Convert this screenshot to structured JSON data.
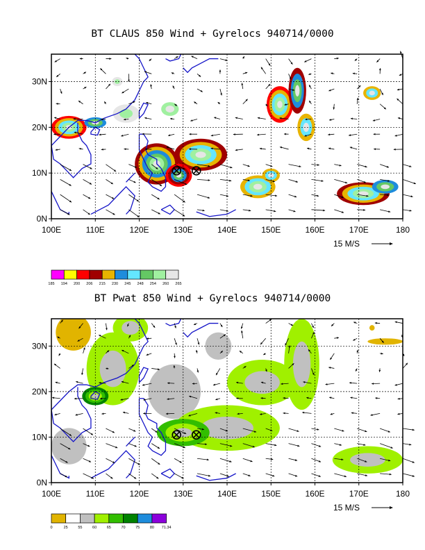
{
  "panels": [
    {
      "title": "BT CLAUS 850 Wind + Gyrelocs 940714/0000",
      "legend": {
        "colors": [
          "#ff00ff",
          "#ffff00",
          "#ff0000",
          "#a00000",
          "#e8b400",
          "#1e8cdc",
          "#64e6ff",
          "#64c864",
          "#a0f0a0",
          "#e6e6e6"
        ],
        "labels": [
          "185",
          "194",
          "200",
          "206",
          "215",
          "230",
          "245",
          "248",
          "254",
          "260",
          "265"
        ]
      }
    },
    {
      "title": "BT Pwat 850 Wind + Gyrelocs 940714/0000",
      "legend": {
        "colors": [
          "#e1b400",
          "#ffffff",
          "#c0c0c0",
          "#a0f000",
          "#32be00",
          "#008200",
          "#1e8cdc",
          "#8c00dc"
        ],
        "labels": [
          "0",
          "25",
          "55",
          "60",
          "65",
          "70",
          "75",
          "80",
          "71.34"
        ]
      }
    }
  ],
  "axes": {
    "x_ticks": [
      "100E",
      "110E",
      "120E",
      "130E",
      "140E",
      "150E",
      "160E",
      "170E",
      "180"
    ],
    "y_ticks": [
      "0N",
      "10N",
      "20N",
      "30N"
    ],
    "lon_range": [
      100,
      180
    ],
    "lat_range": [
      0,
      36
    ]
  },
  "wind_scale_label": "15 M/S",
  "gyre_locations": [
    {
      "lon": 128.5,
      "lat": 10.5
    },
    {
      "lon": 133.0,
      "lat": 10.5
    }
  ],
  "colors": {
    "coastline": "#1414c8",
    "grid": "#000000"
  }
}
